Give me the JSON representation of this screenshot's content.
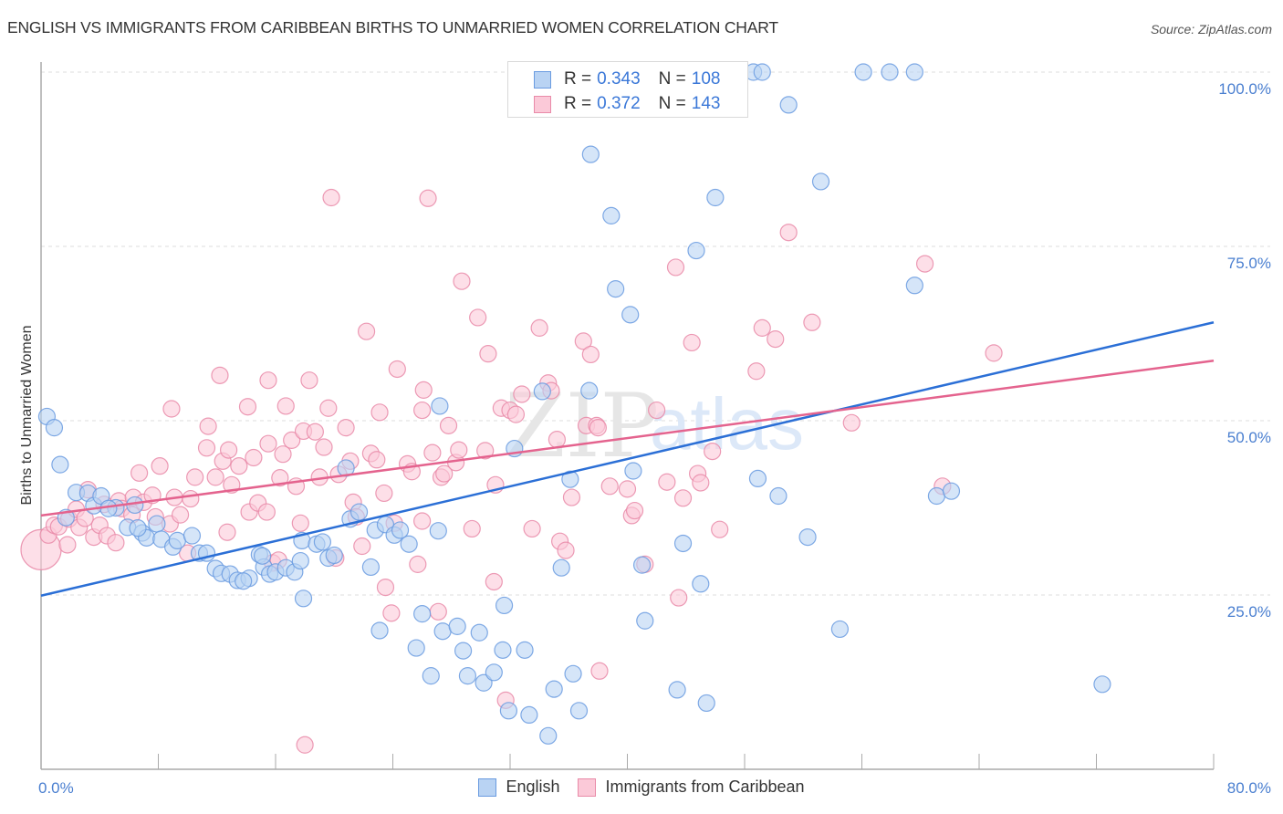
{
  "header": {
    "title": "ENGLISH VS IMMIGRANTS FROM CARIBBEAN BIRTHS TO UNMARRIED WOMEN CORRELATION CHART",
    "source": "Source: ZipAtlas.com"
  },
  "watermark": {
    "zip": "ZIP",
    "atlas": "atlas"
  },
  "legend": {
    "rows": [
      {
        "r_label": "R =",
        "r_value": "0.343",
        "n_label": "N =",
        "n_value": "108",
        "color": "#6a9be0"
      },
      {
        "r_label": "R =",
        "r_value": "0.372",
        "n_label": "N =",
        "n_value": "143",
        "color": "#e98aa8"
      }
    ]
  },
  "bottom_legend": {
    "items": [
      {
        "label": "English",
        "color": "#6a9be0"
      },
      {
        "label": "Immigrants from Caribbean",
        "color": "#e98aa8"
      }
    ]
  },
  "chart_data": {
    "type": "scatter",
    "title": "ENGLISH VS IMMIGRANTS FROM CARIBBEAN BIRTHS TO UNMARRIED WOMEN CORRELATION CHART",
    "xlabel": "",
    "ylabel": "Births to Unmarried Women",
    "xlim": [
      0,
      80
    ],
    "ylim": [
      0,
      100
    ],
    "x_ticks": [
      "0.0%",
      "80.0%"
    ],
    "y_ticks": [
      {
        "value": 25,
        "label": "25.0%"
      },
      {
        "value": 50,
        "label": "50.0%"
      },
      {
        "value": 75,
        "label": "75.0%"
      },
      {
        "value": 100,
        "label": "100.0%"
      }
    ],
    "grid": true,
    "legend_position": "top-center",
    "series": [
      {
        "name": "English",
        "color": "#6a9be0",
        "fill": "#b9d3f3",
        "r": 0.343,
        "n": 108,
        "trend": {
          "x": [
            0,
            80
          ],
          "y": [
            24.9,
            64.1
          ]
        },
        "points": [
          [
            0.4,
            50.6
          ],
          [
            0.9,
            49.0
          ],
          [
            1.3,
            43.7
          ],
          [
            2.4,
            39.7
          ],
          [
            3.2,
            39.6
          ],
          [
            1.7,
            36.1
          ],
          [
            3.6,
            37.8
          ],
          [
            4.1,
            39.2
          ],
          [
            5.1,
            37.5
          ],
          [
            5.9,
            34.7
          ],
          [
            6.4,
            37.9
          ],
          [
            6.9,
            33.9
          ],
          [
            7.2,
            33.2
          ],
          [
            7.9,
            35.2
          ],
          [
            8.2,
            33.0
          ],
          [
            9.0,
            31.9
          ],
          [
            9.3,
            32.8
          ],
          [
            10.3,
            33.5
          ],
          [
            10.8,
            31.0
          ],
          [
            11.3,
            31.0
          ],
          [
            11.9,
            28.8
          ],
          [
            12.3,
            28.1
          ],
          [
            12.9,
            28.0
          ],
          [
            13.4,
            27.1
          ],
          [
            14.2,
            27.4
          ],
          [
            14.9,
            30.8
          ],
          [
            15.2,
            29.0
          ],
          [
            15.6,
            28.0
          ],
          [
            16.0,
            28.3
          ],
          [
            16.7,
            28.9
          ],
          [
            17.3,
            28.3
          ],
          [
            17.7,
            29.9
          ],
          [
            17.8,
            32.8
          ],
          [
            17.9,
            24.5
          ],
          [
            18.8,
            32.3
          ],
          [
            19.2,
            32.6
          ],
          [
            19.6,
            30.3
          ],
          [
            20.0,
            30.7
          ],
          [
            20.8,
            43.2
          ],
          [
            21.1,
            35.9
          ],
          [
            21.7,
            36.9
          ],
          [
            22.5,
            29.0
          ],
          [
            22.8,
            34.3
          ],
          [
            23.1,
            19.9
          ],
          [
            23.5,
            35.1
          ],
          [
            24.1,
            33.6
          ],
          [
            24.5,
            34.3
          ],
          [
            25.1,
            32.3
          ],
          [
            25.6,
            17.4
          ],
          [
            26.0,
            22.3
          ],
          [
            26.6,
            13.4
          ],
          [
            27.1,
            34.2
          ],
          [
            27.4,
            19.8
          ],
          [
            28.4,
            20.5
          ],
          [
            28.8,
            17.0
          ],
          [
            29.1,
            13.4
          ],
          [
            29.9,
            19.6
          ],
          [
            30.2,
            12.4
          ],
          [
            30.9,
            13.9
          ],
          [
            31.5,
            17.1
          ],
          [
            31.6,
            23.5
          ],
          [
            31.9,
            8.4
          ],
          [
            32.3,
            46.0
          ],
          [
            33.0,
            17.1
          ],
          [
            33.3,
            7.8
          ],
          [
            34.6,
            4.8
          ],
          [
            35.0,
            11.5
          ],
          [
            35.5,
            28.9
          ],
          [
            36.1,
            41.6
          ],
          [
            36.3,
            13.7
          ],
          [
            36.7,
            8.4
          ],
          [
            27.2,
            52.1
          ],
          [
            37.4,
            54.3
          ],
          [
            37.5,
            88.2
          ],
          [
            38.9,
            79.4
          ],
          [
            39.2,
            68.9
          ],
          [
            40.2,
            65.2
          ],
          [
            40.4,
            42.8
          ],
          [
            41.0,
            29.3
          ],
          [
            41.2,
            21.3
          ],
          [
            42.4,
            100.0
          ],
          [
            43.2,
            100.0
          ],
          [
            43.4,
            11.4
          ],
          [
            43.8,
            32.4
          ],
          [
            44.7,
            74.4
          ],
          [
            45.0,
            26.6
          ],
          [
            45.4,
            9.5
          ],
          [
            46.0,
            82.0
          ],
          [
            48.6,
            100.0
          ],
          [
            49.2,
            100.0
          ],
          [
            48.9,
            41.7
          ],
          [
            50.3,
            39.2
          ],
          [
            51.0,
            95.3
          ],
          [
            52.3,
            33.3
          ],
          [
            53.2,
            84.3
          ],
          [
            54.5,
            20.1
          ],
          [
            56.1,
            100.0
          ],
          [
            57.9,
            100.0
          ],
          [
            59.6,
            100.0
          ],
          [
            59.6,
            69.4
          ],
          [
            61.1,
            39.2
          ],
          [
            62.1,
            39.9
          ],
          [
            72.4,
            12.2
          ],
          [
            34.2,
            54.2
          ],
          [
            13.8,
            27.0
          ],
          [
            4.6,
            37.4
          ],
          [
            6.6,
            34.6
          ],
          [
            15.1,
            30.6
          ]
        ]
      },
      {
        "name": "Immigrants from Caribbean",
        "color": "#e98aa8",
        "fill": "#fbc9d8",
        "r": 0.372,
        "n": 143,
        "trend": {
          "x": [
            0,
            80
          ],
          "y": [
            36.4,
            58.6
          ]
        },
        "points": [
          [
            0.0,
            31.5
          ],
          [
            0.5,
            33.6
          ],
          [
            0.9,
            35.0
          ],
          [
            1.2,
            34.8
          ],
          [
            1.8,
            32.2
          ],
          [
            1.9,
            35.9
          ],
          [
            2.4,
            37.3
          ],
          [
            2.6,
            34.7
          ],
          [
            3.2,
            40.1
          ],
          [
            3.6,
            33.3
          ],
          [
            4.0,
            35.0
          ],
          [
            4.5,
            33.5
          ],
          [
            5.3,
            38.5
          ],
          [
            5.1,
            32.5
          ],
          [
            5.5,
            37.4
          ],
          [
            6.2,
            36.5
          ],
          [
            6.3,
            39.0
          ],
          [
            6.7,
            42.5
          ],
          [
            7.0,
            38.3
          ],
          [
            7.6,
            39.3
          ],
          [
            7.8,
            36.2
          ],
          [
            8.1,
            43.5
          ],
          [
            8.8,
            35.2
          ],
          [
            9.1,
            39.0
          ],
          [
            9.5,
            36.5
          ],
          [
            10.5,
            41.9
          ],
          [
            10.0,
            31.0
          ],
          [
            10.2,
            38.8
          ],
          [
            11.3,
            46.1
          ],
          [
            11.9,
            41.9
          ],
          [
            12.4,
            44.2
          ],
          [
            12.8,
            45.8
          ],
          [
            13.5,
            43.5
          ],
          [
            13.0,
            40.8
          ],
          [
            14.1,
            52.0
          ],
          [
            14.2,
            36.9
          ],
          [
            14.5,
            44.7
          ],
          [
            14.8,
            38.2
          ],
          [
            15.4,
            36.9
          ],
          [
            15.5,
            46.7
          ],
          [
            15.8,
            29.6
          ],
          [
            16.2,
            30.0
          ],
          [
            16.3,
            41.8
          ],
          [
            16.5,
            45.2
          ],
          [
            16.7,
            52.1
          ],
          [
            17.1,
            47.2
          ],
          [
            17.4,
            40.6
          ],
          [
            17.7,
            35.3
          ],
          [
            17.9,
            48.5
          ],
          [
            18.3,
            55.8
          ],
          [
            18.7,
            48.4
          ],
          [
            19.0,
            41.9
          ],
          [
            19.3,
            46.2
          ],
          [
            19.6,
            51.8
          ],
          [
            20.3,
            42.3
          ],
          [
            20.1,
            30.3
          ],
          [
            20.8,
            49.0
          ],
          [
            21.1,
            44.2
          ],
          [
            21.3,
            38.3
          ],
          [
            21.5,
            36.2
          ],
          [
            21.9,
            32.0
          ],
          [
            22.2,
            62.8
          ],
          [
            22.5,
            45.3
          ],
          [
            22.9,
            44.4
          ],
          [
            23.1,
            51.2
          ],
          [
            23.4,
            39.6
          ],
          [
            23.5,
            26.1
          ],
          [
            24.1,
            35.3
          ],
          [
            23.9,
            22.4
          ],
          [
            24.3,
            57.4
          ],
          [
            25.0,
            43.8
          ],
          [
            25.3,
            42.7
          ],
          [
            25.7,
            29.4
          ],
          [
            26.0,
            51.5
          ],
          [
            26.1,
            54.4
          ],
          [
            26.7,
            45.4
          ],
          [
            27.3,
            41.9
          ],
          [
            27.1,
            22.6
          ],
          [
            27.5,
            42.4
          ],
          [
            27.8,
            49.3
          ],
          [
            28.3,
            44.0
          ],
          [
            28.5,
            45.8
          ],
          [
            28.7,
            70.0
          ],
          [
            29.4,
            34.5
          ],
          [
            29.8,
            64.8
          ],
          [
            30.3,
            45.7
          ],
          [
            30.5,
            59.6
          ],
          [
            30.9,
            26.9
          ],
          [
            31.0,
            40.8
          ],
          [
            31.4,
            51.8
          ],
          [
            31.7,
            9.9
          ],
          [
            32.0,
            51.5
          ],
          [
            32.4,
            50.9
          ],
          [
            32.8,
            53.8
          ],
          [
            33.5,
            34.5
          ],
          [
            34.0,
            63.3
          ],
          [
            34.6,
            55.4
          ],
          [
            35.2,
            47.3
          ],
          [
            34.8,
            54.3
          ],
          [
            35.4,
            32.7
          ],
          [
            35.8,
            31.4
          ],
          [
            36.2,
            39.0
          ],
          [
            37.0,
            61.4
          ],
          [
            37.2,
            49.3
          ],
          [
            37.5,
            59.5
          ],
          [
            37.9,
            49.3
          ],
          [
            38.0,
            49.0
          ],
          [
            38.1,
            14.1
          ],
          [
            38.8,
            40.6
          ],
          [
            40.0,
            40.2
          ],
          [
            40.3,
            36.4
          ],
          [
            40.5,
            37.1
          ],
          [
            41.2,
            29.4
          ],
          [
            42.0,
            51.5
          ],
          [
            42.7,
            41.2
          ],
          [
            43.3,
            72.0
          ],
          [
            43.5,
            24.6
          ],
          [
            43.8,
            38.9
          ],
          [
            44.4,
            61.2
          ],
          [
            44.8,
            42.4
          ],
          [
            45.0,
            41.1
          ],
          [
            45.8,
            45.6
          ],
          [
            46.3,
            34.4
          ],
          [
            48.8,
            57.1
          ],
          [
            49.2,
            63.3
          ],
          [
            50.1,
            61.7
          ],
          [
            51.0,
            77.0
          ],
          [
            52.6,
            64.1
          ],
          [
            55.3,
            49.7
          ],
          [
            60.3,
            72.5
          ],
          [
            61.5,
            40.6
          ],
          [
            65.0,
            59.7
          ],
          [
            18.0,
            3.5
          ],
          [
            19.8,
            82.0
          ],
          [
            3.0,
            36.0
          ],
          [
            8.9,
            51.7
          ],
          [
            11.4,
            49.2
          ],
          [
            12.2,
            56.5
          ],
          [
            15.5,
            55.8
          ],
          [
            26.4,
            81.9
          ],
          [
            26.0,
            35.6
          ],
          [
            12.7,
            34.0
          ],
          [
            4.3,
            38.0
          ]
        ]
      }
    ]
  }
}
